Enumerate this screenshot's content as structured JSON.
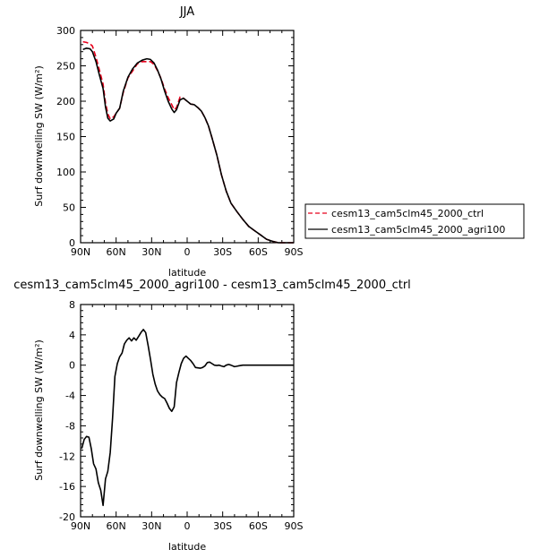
{
  "chart_data": [
    {
      "type": "line",
      "title": "JJA",
      "xlabel": "latitude",
      "ylabel": "Surf downwelling SW  (W/m²)",
      "xlim": [
        90,
        -90
      ],
      "ylim": [
        0,
        300
      ],
      "x_ticks": [
        90,
        60,
        30,
        0,
        -30,
        -60,
        -90
      ],
      "x_tick_labels": [
        "90N",
        "60N",
        "30N",
        "0",
        "30S",
        "60S",
        "90S"
      ],
      "y_ticks": [
        0,
        50,
        100,
        150,
        200,
        250,
        300
      ],
      "y_tick_labels": [
        "0",
        "50",
        "100",
        "150",
        "200",
        "250",
        "300"
      ],
      "legend": "right",
      "series": [
        {
          "name": "cesm13_cam5clm45_2000_ctrl",
          "color": "#e8001c",
          "dash": "dashed",
          "x": [
            88,
            85,
            82,
            80,
            77,
            74,
            71,
            69,
            67,
            65,
            62,
            60,
            57,
            54,
            50,
            46,
            42,
            38,
            34,
            31,
            28,
            25,
            22,
            19,
            16,
            13,
            11,
            9,
            6,
            3,
            0,
            -3,
            -6,
            -9,
            -12,
            -15,
            -18,
            -21,
            -25,
            -29,
            -33,
            -37,
            -42,
            -47,
            -52,
            -57,
            -62,
            -67,
            -72,
            -77,
            -82,
            -86,
            -90
          ],
          "y": [
            284,
            283,
            281,
            278,
            262,
            243,
            224,
            198,
            182,
            175,
            178,
            183,
            190,
            212,
            233,
            243,
            253,
            256,
            256,
            256,
            252,
            243,
            232,
            217,
            205,
            195,
            188,
            191,
            206,
            204,
            200,
            196,
            195,
            191,
            186,
            177,
            165,
            148,
            124,
            96,
            73,
            56,
            44,
            33,
            23,
            17,
            11,
            5,
            2,
            0,
            0,
            0,
            0
          ]
        },
        {
          "name": "cesm13_cam5clm45_2000_agri100",
          "color": "#000000",
          "dash": "solid",
          "x": [
            88,
            85,
            82,
            80,
            77,
            74,
            71,
            69,
            67,
            65,
            62,
            60,
            57,
            54,
            50,
            46,
            42,
            38,
            34,
            31,
            28,
            25,
            22,
            19,
            16,
            13,
            11,
            9,
            6,
            3,
            0,
            -3,
            -6,
            -9,
            -12,
            -15,
            -18,
            -21,
            -25,
            -29,
            -33,
            -37,
            -42,
            -47,
            -52,
            -57,
            -62,
            -67,
            -72,
            -77,
            -82,
            -86,
            -90
          ],
          "y": [
            273,
            275,
            274,
            270,
            256,
            236,
            218,
            192,
            176,
            172,
            175,
            183,
            190,
            214,
            234,
            246,
            254,
            258,
            260,
            259,
            254,
            244,
            231,
            214,
            200,
            189,
            184,
            188,
            202,
            204,
            200,
            196,
            195,
            191,
            186,
            177,
            165,
            148,
            124,
            96,
            73,
            56,
            44,
            33,
            23,
            17,
            11,
            5,
            2,
            0,
            0,
            0,
            0
          ]
        }
      ]
    },
    {
      "type": "line",
      "title": "cesm13_cam5clm45_2000_agri100 - cesm13_cam5clm45_2000_ctrl",
      "xlabel": "latitude",
      "ylabel": "Surf downwelling SW  (W/m²)",
      "xlim": [
        90,
        -90
      ],
      "ylim": [
        -20,
        8
      ],
      "x_ticks": [
        90,
        60,
        30,
        0,
        -30,
        -60,
        -90
      ],
      "x_tick_labels": [
        "90N",
        "60N",
        "30N",
        "0",
        "30S",
        "60S",
        "90S"
      ],
      "y_ticks": [
        8,
        4,
        0,
        -4,
        -8,
        -12,
        -16,
        -20
      ],
      "y_tick_labels": [
        "8",
        "4",
        "0",
        "-4",
        "-8",
        "-12",
        "-16",
        "-20"
      ],
      "series": [
        {
          "color": "#000000",
          "dash": "solid",
          "x": [
            89,
            87,
            85,
            83,
            81,
            79,
            77,
            75,
            73,
            71,
            69,
            67,
            65,
            63,
            61,
            59,
            57,
            55,
            53,
            51,
            49,
            47,
            45,
            43,
            41,
            39,
            37,
            35,
            33,
            31,
            29,
            27,
            25,
            23,
            21,
            19,
            17,
            15,
            13,
            11,
            9,
            7,
            5,
            3,
            1,
            -1,
            -3,
            -5,
            -7,
            -9,
            -11,
            -13,
            -15,
            -17,
            -19,
            -21,
            -23,
            -25,
            -27,
            -29,
            -31,
            -33,
            -35,
            -37,
            -40,
            -43,
            -47,
            -51,
            -55,
            -60,
            -65,
            -70,
            -75,
            -80,
            -85,
            -90
          ],
          "y": [
            -11,
            -9.8,
            -9.4,
            -9.5,
            -11,
            -13,
            -13.7,
            -15.5,
            -16.5,
            -18.5,
            -15,
            -14,
            -11.5,
            -7,
            -1.5,
            0.2,
            1.1,
            1.6,
            2.8,
            3.3,
            3.6,
            3.2,
            3.6,
            3.3,
            3.8,
            4.3,
            4.7,
            4.3,
            2.6,
            0.8,
            -1.2,
            -2.5,
            -3.4,
            -3.9,
            -4.2,
            -4.4,
            -5,
            -5.7,
            -6.1,
            -5.5,
            -2.3,
            -1,
            0.2,
            0.9,
            1.2,
            0.9,
            0.6,
            0.2,
            -0.3,
            -0.35,
            -0.4,
            -0.3,
            -0.1,
            0.35,
            0.4,
            0.2,
            0,
            -0.05,
            0,
            -0.1,
            -0.2,
            0,
            0.1,
            0,
            -0.2,
            -0.1,
            0,
            0,
            0,
            0,
            0,
            0,
            0,
            0,
            0,
            0
          ]
        }
      ]
    }
  ]
}
